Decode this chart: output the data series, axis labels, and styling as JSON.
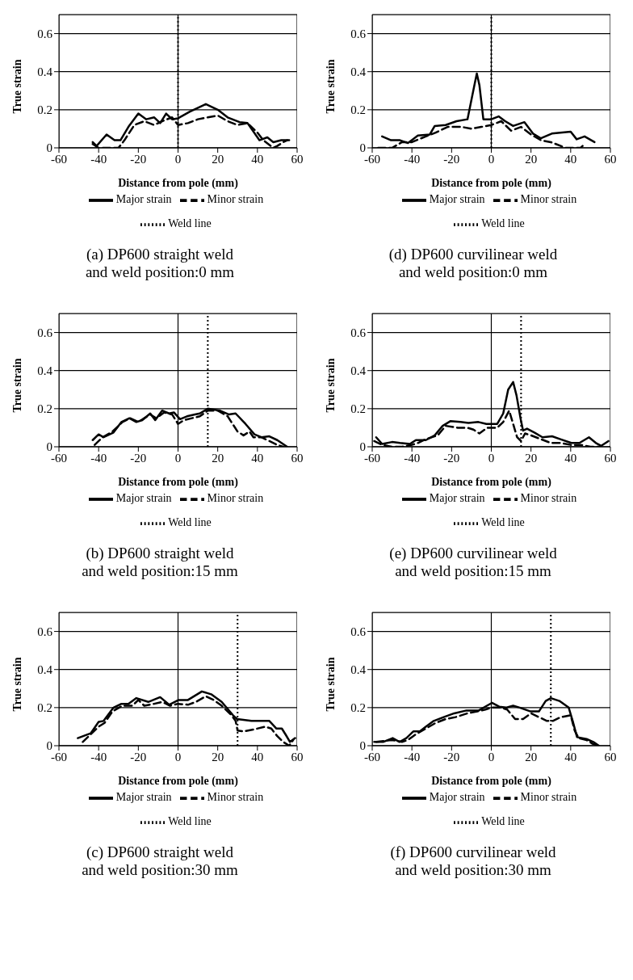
{
  "chart_data": [
    {
      "type": "line",
      "title": "(a) DP600 straight weld and weld position:0 mm",
      "xlabel": "Distance from pole (mm)",
      "ylabel": "True strain",
      "xlim": [
        -60,
        60
      ],
      "xticks": [
        -60,
        -40,
        -20,
        0,
        20,
        40,
        60
      ],
      "ylim": [
        0,
        0.7
      ],
      "yticks": [
        0,
        0.2,
        0.4,
        0.6
      ],
      "grid": "y",
      "legend": "bottom",
      "ref_lines": [
        {
          "axis": "x",
          "value": 0,
          "color": "#000000",
          "line_style": "solid"
        }
      ],
      "series": [
        {
          "name": "Major strain",
          "color": "#000000",
          "line_style": "solid",
          "x": [
            -43,
            -41,
            -36,
            -32,
            -29,
            -25,
            -20,
            -16,
            -12,
            -9,
            -6,
            -3,
            0,
            6,
            14,
            20,
            25,
            31,
            35,
            41,
            45,
            48,
            52,
            56
          ],
          "values": [
            0.03,
            0.01,
            0.07,
            0.04,
            0.04,
            0.11,
            0.18,
            0.15,
            0.16,
            0.13,
            0.18,
            0.15,
            0.155,
            0.19,
            0.23,
            0.2,
            0.16,
            0.135,
            0.13,
            0.04,
            0.055,
            0.03,
            0.04,
            0.04
          ]
        },
        {
          "name": "Minor strain",
          "color": "#000000",
          "line_style": "dashed",
          "x": [
            -43,
            -40,
            -35,
            -30,
            -27,
            -22,
            -17,
            -12,
            -8,
            -3,
            0,
            5,
            10,
            15,
            20,
            25,
            30,
            35,
            40,
            43,
            48,
            50,
            53,
            55
          ],
          "values": [
            0.02,
            0,
            0,
            0,
            0.04,
            0.12,
            0.14,
            0.12,
            0.14,
            0.16,
            0.12,
            0.13,
            0.15,
            0.16,
            0.17,
            0.14,
            0.12,
            0.13,
            0.08,
            0.04,
            0,
            0.01,
            0.03,
            0.04
          ]
        },
        {
          "name": "Weld line",
          "color": "#000000",
          "line_style": "dotted",
          "x": [
            0,
            0
          ],
          "values": [
            0,
            0.7
          ]
        }
      ]
    },
    {
      "type": "line",
      "title": "(d) DP600 curvilinear weld and weld position:0 mm",
      "xlabel": "Distance from pole (mm)",
      "ylabel": "True strain",
      "xlim": [
        -60,
        60
      ],
      "xticks": [
        -60,
        -40,
        -20,
        0,
        20,
        40,
        60
      ],
      "ylim": [
        0,
        0.7
      ],
      "yticks": [
        0,
        0.2,
        0.4,
        0.6
      ],
      "grid": "y",
      "legend": "bottom",
      "ref_lines": [
        {
          "axis": "x",
          "value": 0,
          "color": "#000000",
          "line_style": "solid"
        }
      ],
      "series": [
        {
          "name": "Major strain",
          "color": "#000000",
          "line_style": "solid",
          "x": [
            -55,
            -50.5,
            -46,
            -42,
            -37,
            -31,
            -28.5,
            -23,
            -17.5,
            -12,
            -8.5,
            -7.3,
            -6,
            -4,
            0,
            3.7,
            7,
            11,
            16.7,
            21,
            25,
            30.5,
            40,
            43,
            47,
            52
          ],
          "values": [
            0.06,
            0.04,
            0.04,
            0.025,
            0.065,
            0.07,
            0.115,
            0.12,
            0.14,
            0.15,
            0.33,
            0.39,
            0.33,
            0.15,
            0.15,
            0.165,
            0.14,
            0.115,
            0.135,
            0.075,
            0.05,
            0.075,
            0.085,
            0.045,
            0.06,
            0.03
          ]
        },
        {
          "name": "Minor strain",
          "color": "#000000",
          "line_style": "dashed",
          "x": [
            -57,
            -50,
            -45,
            -40,
            -33,
            -28,
            -22,
            -15,
            -10,
            -5,
            0,
            5,
            10,
            15,
            20,
            25,
            30,
            35,
            37,
            40,
            45,
            46
          ],
          "values": [
            0,
            0,
            0.03,
            0.03,
            0.06,
            0.08,
            0.11,
            0.11,
            0.1,
            0.11,
            0.12,
            0.14,
            0.09,
            0.11,
            0.07,
            0.04,
            0.03,
            0.01,
            0,
            0,
            0,
            0.01
          ]
        },
        {
          "name": "Weld line",
          "color": "#000000",
          "line_style": "dotted",
          "x": [
            0,
            0
          ],
          "values": [
            0,
            0.7
          ]
        }
      ]
    },
    {
      "type": "line",
      "title": "(b) DP600 straight weld and weld position:15 mm",
      "xlabel": "Distance from pole (mm)",
      "ylabel": "True strain",
      "xlim": [
        -60,
        60
      ],
      "xticks": [
        -60,
        -40,
        -20,
        0,
        20,
        40,
        60
      ],
      "ylim": [
        0,
        0.7
      ],
      "yticks": [
        0,
        0.2,
        0.4,
        0.6
      ],
      "grid": "y",
      "legend": "bottom",
      "ref_lines": [
        {
          "axis": "x",
          "value": 0,
          "color": "#000000",
          "line_style": "solid"
        }
      ],
      "series": [
        {
          "name": "Major strain",
          "color": "#000000",
          "line_style": "solid",
          "x": [
            -43,
            -40,
            -37.5,
            -32.5,
            -28.5,
            -24.5,
            -21,
            -18,
            -14,
            -11.5,
            -8,
            -4.5,
            -2,
            1,
            4.5,
            8.5,
            11,
            15,
            21,
            25.5,
            29,
            34,
            38.5,
            42,
            46,
            50,
            55
          ],
          "values": [
            0.035,
            0.065,
            0.05,
            0.075,
            0.13,
            0.15,
            0.13,
            0.14,
            0.175,
            0.14,
            0.19,
            0.175,
            0.18,
            0.145,
            0.16,
            0.17,
            0.175,
            0.2,
            0.19,
            0.17,
            0.175,
            0.12,
            0.065,
            0.05,
            0.055,
            0.035,
            0
          ]
        },
        {
          "name": "Minor strain",
          "color": "#000000",
          "line_style": "dashed",
          "x": [
            -42,
            -40,
            -38,
            -33,
            -28,
            -24,
            -20,
            -17,
            -14,
            -11,
            -7,
            -3,
            0,
            3,
            7,
            11,
            15,
            20,
            25,
            30,
            33,
            36,
            38,
            42,
            46,
            50,
            53
          ],
          "values": [
            0.01,
            0.03,
            0.05,
            0.08,
            0.13,
            0.15,
            0.13,
            0.15,
            0.17,
            0.15,
            0.18,
            0.17,
            0.12,
            0.14,
            0.15,
            0.16,
            0.19,
            0.19,
            0.16,
            0.08,
            0.06,
            0.08,
            0.05,
            0.05,
            0.03,
            0.01,
            0
          ]
        },
        {
          "name": "Weld line",
          "color": "#000000",
          "line_style": "dotted",
          "x": [
            15,
            15
          ],
          "values": [
            0,
            0.7
          ]
        }
      ]
    },
    {
      "type": "line",
      "title": "(e) DP600 curvilinear weld and weld position:15 mm",
      "xlabel": "Distance from pole (mm)",
      "ylabel": "True strain",
      "xlim": [
        -60,
        60
      ],
      "xticks": [
        -60,
        -40,
        -20,
        0,
        20,
        40,
        60
      ],
      "ylim": [
        0,
        0.7
      ],
      "yticks": [
        0,
        0.2,
        0.4,
        0.6
      ],
      "grid": "y",
      "legend": "bottom",
      "ref_lines": [
        {
          "axis": "x",
          "value": 0,
          "color": "#000000",
          "line_style": "solid"
        }
      ],
      "series": [
        {
          "name": "Major strain",
          "color": "#000000",
          "line_style": "solid",
          "x": [
            -58,
            -55,
            -50,
            -46,
            -41,
            -38,
            -33,
            -28.5,
            -24.5,
            -20.5,
            -15.5,
            -11.5,
            -6.5,
            -2.5,
            3,
            6,
            8.5,
            11,
            12.7,
            14.8,
            16,
            18,
            21.7,
            25.8,
            30.6,
            34.8,
            40.3,
            44.4,
            49.2,
            52.7,
            55.4,
            59
          ],
          "values": [
            0.05,
            0.015,
            0.025,
            0.02,
            0.015,
            0.035,
            0.035,
            0.06,
            0.11,
            0.135,
            0.13,
            0.125,
            0.13,
            0.12,
            0.12,
            0.175,
            0.3,
            0.34,
            0.27,
            0.145,
            0.085,
            0.095,
            0.075,
            0.05,
            0.055,
            0.04,
            0.02,
            0.02,
            0.05,
            0.02,
            0.005,
            0.03
          ]
        },
        {
          "name": "Minor strain",
          "color": "#000000",
          "line_style": "dashed",
          "x": [
            -59,
            -55,
            -50,
            -45,
            -40,
            -37,
            -33,
            -27,
            -23,
            -17,
            -12,
            -9,
            -6,
            -2,
            3,
            6,
            9,
            11,
            13,
            15,
            17,
            20,
            25,
            30,
            35,
            40,
            45,
            50,
            55
          ],
          "values": [
            0.03,
            0.01,
            0,
            0,
            0.01,
            0.02,
            0.04,
            0.06,
            0.11,
            0.1,
            0.1,
            0.09,
            0.07,
            0.1,
            0.1,
            0.13,
            0.19,
            0.12,
            0.05,
            0.03,
            0.07,
            0.06,
            0.04,
            0.02,
            0.02,
            0.01,
            0.01,
            0,
            0
          ]
        },
        {
          "name": "Weld line",
          "color": "#000000",
          "line_style": "dotted",
          "x": [
            15,
            15
          ],
          "values": [
            0,
            0.7
          ]
        }
      ]
    },
    {
      "type": "line",
      "title": "(c) DP600 straight weld and weld position:30 mm",
      "xlabel": "Distance from pole (mm)",
      "ylabel": "True strain",
      "xlim": [
        -60,
        60
      ],
      "xticks": [
        -60,
        -40,
        -20,
        0,
        20,
        40,
        60
      ],
      "ylim": [
        0,
        0.7
      ],
      "yticks": [
        0,
        0.2,
        0.4,
        0.6
      ],
      "grid": "y",
      "legend": "bottom",
      "ref_lines": [
        {
          "axis": "x",
          "value": 0,
          "color": "#000000",
          "line_style": "solid"
        }
      ],
      "series": [
        {
          "name": "Major strain",
          "color": "#000000",
          "line_style": "solid",
          "x": [
            -50.5,
            -44,
            -40,
            -37.5,
            -32.5,
            -28.5,
            -25,
            -21,
            -15,
            -9,
            -4.5,
            0.3,
            5,
            12,
            16.7,
            22,
            27.7,
            29.7,
            37,
            46,
            49.6,
            52.3,
            54.4,
            56.4,
            59
          ],
          "values": [
            0.04,
            0.065,
            0.125,
            0.13,
            0.2,
            0.22,
            0.22,
            0.25,
            0.23,
            0.255,
            0.215,
            0.24,
            0.24,
            0.285,
            0.27,
            0.23,
            0.16,
            0.14,
            0.13,
            0.13,
            0.09,
            0.09,
            0.055,
            0.02,
            0.04
          ]
        },
        {
          "name": "Minor strain",
          "color": "#000000",
          "line_style": "dashed",
          "x": [
            -48,
            -44,
            -40,
            -37,
            -33,
            -28,
            -23,
            -20,
            -17,
            -12,
            -8,
            -4,
            0,
            5,
            9,
            14,
            18,
            22,
            27,
            29,
            30,
            33,
            38,
            44,
            47,
            50,
            53,
            56,
            58
          ],
          "values": [
            0.02,
            0.06,
            0.1,
            0.12,
            0.18,
            0.21,
            0.21,
            0.24,
            0.21,
            0.22,
            0.23,
            0.21,
            0.22,
            0.215,
            0.23,
            0.26,
            0.24,
            0.21,
            0.16,
            0.13,
            0.08,
            0.075,
            0.085,
            0.1,
            0.09,
            0.05,
            0.02,
            0,
            0.03
          ]
        },
        {
          "name": "Weld line",
          "color": "#000000",
          "line_style": "dotted",
          "x": [
            30,
            30
          ],
          "values": [
            0,
            0.7
          ]
        }
      ]
    },
    {
      "type": "line",
      "title": "(f) DP600 curvilinear weld and weld position:30 mm",
      "xlabel": "Distance from pole (mm)",
      "ylabel": "True strain",
      "xlim": [
        -60,
        60
      ],
      "xticks": [
        -60,
        -40,
        -20,
        0,
        20,
        40,
        60
      ],
      "ylim": [
        0,
        0.7
      ],
      "yticks": [
        0,
        0.2,
        0.4,
        0.6
      ],
      "grid": "y",
      "legend": "bottom",
      "ref_lines": [
        {
          "axis": "x",
          "value": 0,
          "color": "#000000",
          "line_style": "solid"
        }
      ],
      "series": [
        {
          "name": "Major strain",
          "color": "#000000",
          "line_style": "solid",
          "x": [
            -59,
            -54.5,
            -49.7,
            -46.2,
            -42.8,
            -39.3,
            -36,
            -33,
            -29,
            -24,
            -18.7,
            -12.5,
            -6.3,
            -2.2,
            0.3,
            4,
            7.4,
            11,
            14.3,
            19.8,
            24,
            27.4,
            30,
            34.3,
            39,
            41,
            43.2,
            48,
            51.4,
            54.2
          ],
          "values": [
            0.02,
            0.02,
            0.04,
            0.02,
            0.04,
            0.075,
            0.075,
            0.1,
            0.13,
            0.15,
            0.17,
            0.185,
            0.185,
            0.21,
            0.225,
            0.205,
            0.2,
            0.21,
            0.2,
            0.18,
            0.18,
            0.235,
            0.25,
            0.235,
            0.2,
            0.13,
            0.045,
            0.035,
            0.02,
            0
          ]
        },
        {
          "name": "Minor strain",
          "color": "#000000",
          "line_style": "dashed",
          "x": [
            -58,
            -50,
            -45,
            -42,
            -38,
            -33,
            -28,
            -23,
            -18,
            -12,
            -7,
            -3,
            0,
            5,
            8,
            12,
            16,
            20,
            24,
            28,
            31,
            35,
            40,
            42,
            44,
            48,
            51,
            54
          ],
          "values": [
            0.02,
            0.03,
            0.02,
            0.03,
            0.06,
            0.09,
            0.12,
            0.14,
            0.15,
            0.17,
            0.18,
            0.19,
            0.2,
            0.2,
            0.19,
            0.14,
            0.14,
            0.17,
            0.15,
            0.13,
            0.13,
            0.15,
            0.16,
            0.08,
            0.04,
            0.03,
            0.01,
            0
          ]
        },
        {
          "name": "Weld line",
          "color": "#000000",
          "line_style": "dotted",
          "x": [
            30,
            30
          ],
          "values": [
            0,
            0.7
          ]
        }
      ]
    }
  ]
}
